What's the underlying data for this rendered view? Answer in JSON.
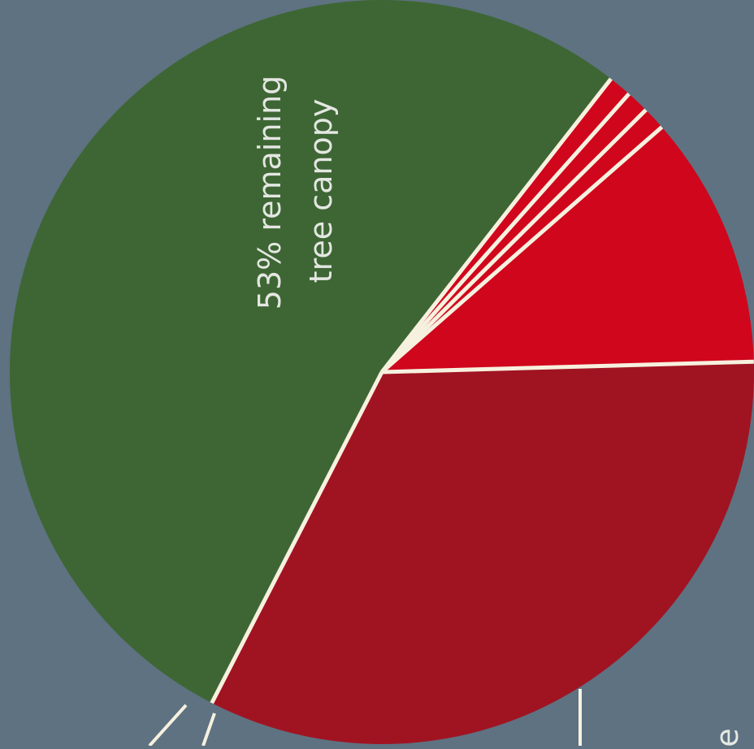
{
  "colors": {
    "background": "#5e7282",
    "separator": "#f6f1df",
    "label_text": "#e4e7e2"
  },
  "chart_data": {
    "type": "pie",
    "title": "",
    "slices": [
      {
        "label": "53% remaining tree canopy",
        "value": 53,
        "color": "#3e6634"
      },
      {
        "label": "",
        "value": 33,
        "color": "#a01422"
      },
      {
        "label": "",
        "value": 11,
        "color": "#d0061c"
      },
      {
        "label": "",
        "value": 1,
        "color": "#d0061c"
      },
      {
        "label": "",
        "value": 1,
        "color": "#d0061c"
      },
      {
        "label": "",
        "value": 1,
        "color": "#d0061c"
      }
    ],
    "slice_label_lines": [
      "53% remaining",
      "tree canopy"
    ],
    "edge_text": "e"
  }
}
